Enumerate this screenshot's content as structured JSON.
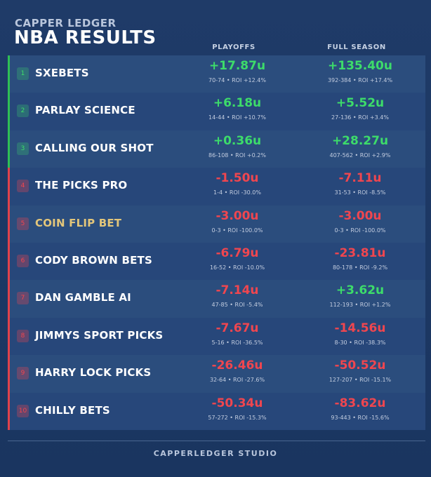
{
  "header": {
    "brand": "CAPPER LEDGER",
    "title": "NBA RESULTS"
  },
  "columns": [
    "PLAYOFFS",
    "FULL SEASON"
  ],
  "rows": [
    {
      "rank": "1",
      "name": "SXEBETS",
      "playoffs": {
        "units": "+17.87u",
        "detail": "70-74 • ROI +12.4%"
      },
      "season": {
        "units": "+135.40u",
        "detail": "392-384 • ROI +17.4%"
      }
    },
    {
      "rank": "2",
      "name": "PARLAY SCIENCE",
      "playoffs": {
        "units": "+6.18u",
        "detail": "14-44 • ROI +10.7%"
      },
      "season": {
        "units": "+5.52u",
        "detail": "27-136 • ROI +3.4%"
      }
    },
    {
      "rank": "3",
      "name": "CALLING OUR SHOT",
      "playoffs": {
        "units": "+0.36u",
        "detail": "86-108 • ROI +0.2%"
      },
      "season": {
        "units": "+28.27u",
        "detail": "407-562 • ROI +2.9%"
      }
    },
    {
      "rank": "4",
      "name": "THE PICKS PRO",
      "playoffs": {
        "units": "-1.50u",
        "detail": "1-4 • ROI -30.0%"
      },
      "season": {
        "units": "-7.11u",
        "detail": "31-53 • ROI -8.5%"
      }
    },
    {
      "rank": "5",
      "name": "COIN FLIP BET",
      "playoffs": {
        "units": "-3.00u",
        "detail": "0-3 • ROI -100.0%"
      },
      "season": {
        "units": "-3.00u",
        "detail": "0-3 • ROI -100.0%"
      }
    },
    {
      "rank": "6",
      "name": "CODY BROWN BETS",
      "playoffs": {
        "units": "-6.79u",
        "detail": "16-52 • ROI -10.0%"
      },
      "season": {
        "units": "-23.81u",
        "detail": "80-178 • ROI -9.2%"
      }
    },
    {
      "rank": "7",
      "name": "DAN GAMBLE AI",
      "playoffs": {
        "units": "-7.14u",
        "detail": "47-85 • ROI -5.4%"
      },
      "season": {
        "units": "+3.62u",
        "detail": "112-193 • ROI +1.2%"
      }
    },
    {
      "rank": "8",
      "name": "JIMMYS SPORT PICKS",
      "playoffs": {
        "units": "-7.67u",
        "detail": "5-16 • ROI -36.5%"
      },
      "season": {
        "units": "-14.56u",
        "detail": "8-30 • ROI -38.3%"
      }
    },
    {
      "rank": "9",
      "name": "HARRY LOCK PICKS",
      "playoffs": {
        "units": "-26.46u",
        "detail": "32-64 • ROI -27.6%"
      },
      "season": {
        "units": "-50.52u",
        "detail": "127-207 • ROI -15.1%"
      }
    },
    {
      "rank": "10",
      "name": "CHILLY BETS",
      "playoffs": {
        "units": "-50.34u",
        "detail": "57-272 • ROI -15.3%"
      },
      "season": {
        "units": "-83.62u",
        "detail": "93-443 • ROI -15.6%"
      }
    }
  ],
  "footer": "CAPPERLEDGER STUDIO"
}
